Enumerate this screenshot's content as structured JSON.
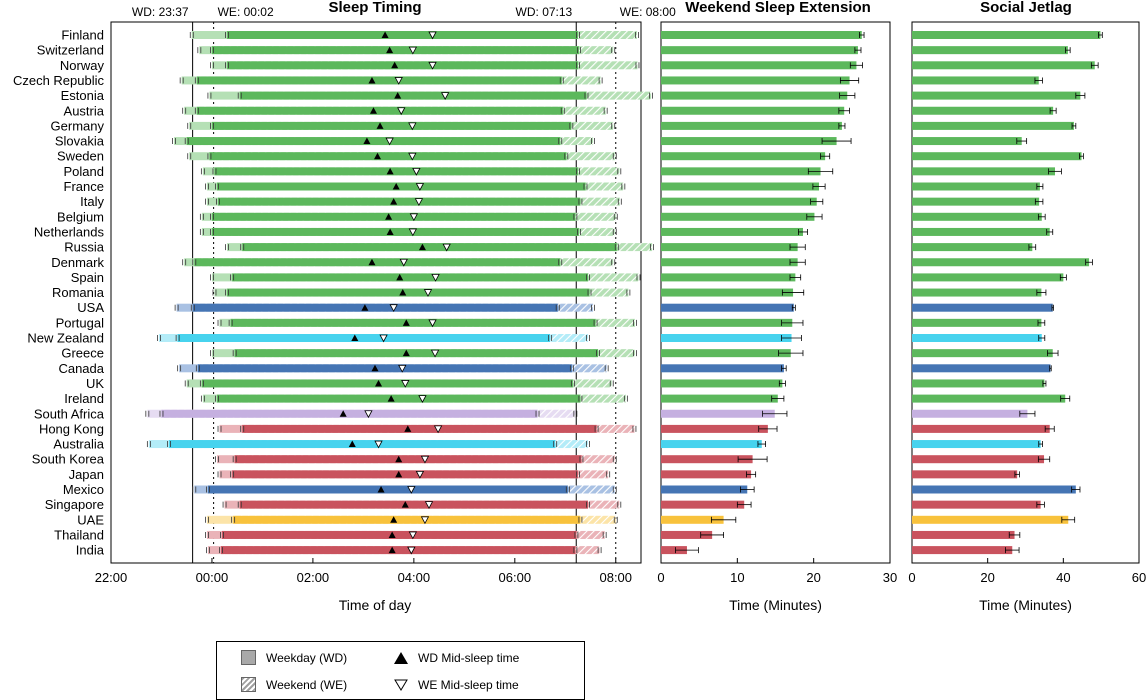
{
  "colors": {
    "europe": "#5cb85c",
    "europe_light": "#b5e0b5",
    "north_america": "#4575b4",
    "north_america_light": "#a9c1e3",
    "oceania": "#47d3ee",
    "oceania_light": "#b3ecf8",
    "africa": "#c5b0e0",
    "africa_light": "#e6dcf2",
    "asia": "#c9535e",
    "asia_light": "#eab3b8",
    "middle_east": "#f8c23c",
    "middle_east_light": "#fce4a8"
  },
  "chart_data": [
    {
      "type": "bar",
      "title": "Sleep Timing",
      "xlabel": "Time of day",
      "xticks": [
        "22:00",
        "00:00",
        "02:00",
        "04:00",
        "06:00",
        "08:00"
      ],
      "xrange_hours": [
        22,
        32.5
      ],
      "reference_lines": [
        {
          "label": "WD: 23:37",
          "hour": 23.617,
          "style": "solid"
        },
        {
          "label": "WE: 00:02",
          "hour": 24.033,
          "style": "dotted"
        },
        {
          "label": "WD: 07:13",
          "hour": 31.217,
          "style": "solid"
        },
        {
          "label": "WE: 08:00",
          "hour": 32.0,
          "style": "dotted"
        }
      ],
      "legend": [
        "Weekday (WD)",
        "Weekend (WE)",
        "WD Mid-sleep time",
        "WE Mid-sleep time"
      ],
      "legend_position": "bottom",
      "series_fields": [
        "country",
        "region",
        "wd_onset",
        "wd_offset",
        "we_onset",
        "we_offset",
        "wd_mid",
        "we_mid"
      ],
      "countries": [
        [
          "Finland",
          "europe",
          23.6,
          31.25,
          24.3,
          32.42,
          27.43,
          28.37
        ],
        [
          "Switzerland",
          "europe",
          23.75,
          31.27,
          24.0,
          31.95,
          27.52,
          27.98
        ],
        [
          "Norway",
          "europe",
          24.0,
          31.25,
          24.3,
          32.43,
          27.62,
          28.37
        ],
        [
          "Czech Republic",
          "europe",
          23.4,
          30.93,
          23.7,
          31.7,
          27.17,
          27.7
        ],
        [
          "Estonia",
          "europe",
          23.95,
          31.42,
          24.55,
          32.7,
          27.68,
          28.62
        ],
        [
          "Austria",
          "europe",
          23.45,
          30.95,
          23.7,
          31.8,
          27.2,
          27.75
        ],
        [
          "Germany",
          "europe",
          23.55,
          31.12,
          24.0,
          31.95,
          27.33,
          27.97
        ],
        [
          "Slovakia",
          "europe",
          23.25,
          30.9,
          23.5,
          31.55,
          27.07,
          27.52
        ],
        [
          "Sweden",
          "europe",
          23.55,
          31.02,
          23.95,
          31.98,
          27.28,
          27.97
        ],
        [
          "Poland",
          "europe",
          23.82,
          31.25,
          24.05,
          32.07,
          27.53,
          28.05
        ],
        [
          "France",
          "europe",
          23.9,
          31.4,
          24.1,
          32.15,
          27.65,
          28.12
        ],
        [
          "Italy",
          "europe",
          23.9,
          31.3,
          24.12,
          32.08,
          27.6,
          28.1
        ],
        [
          "Belgium",
          "europe",
          23.8,
          31.2,
          24.0,
          32.0,
          27.5,
          28.0
        ],
        [
          "Netherlands",
          "europe",
          23.8,
          31.27,
          24.0,
          31.98,
          27.53,
          27.98
        ],
        [
          "Russia",
          "europe",
          24.3,
          32.02,
          24.6,
          32.72,
          28.17,
          28.65
        ],
        [
          "Denmark",
          "europe",
          23.45,
          30.9,
          23.65,
          31.95,
          27.17,
          27.8
        ],
        [
          "Spain",
          "europe",
          24.0,
          31.45,
          24.4,
          32.45,
          27.72,
          28.43
        ],
        [
          "Romania",
          "europe",
          24.05,
          31.48,
          24.3,
          32.25,
          27.78,
          28.28
        ],
        [
          "USA",
          "north_america",
          23.3,
          30.85,
          23.62,
          31.55,
          27.03,
          27.6
        ],
        [
          "Portugal",
          "europe",
          24.15,
          31.6,
          24.37,
          32.38,
          27.85,
          28.37
        ],
        [
          "New Zealand",
          "oceania",
          22.95,
          30.7,
          23.32,
          31.45,
          26.83,
          27.4
        ],
        [
          "Greece",
          "europe",
          24.0,
          31.65,
          24.45,
          32.38,
          27.85,
          28.42
        ],
        [
          "Canada",
          "north_america",
          23.35,
          31.13,
          23.72,
          31.82,
          27.23,
          27.77
        ],
        [
          "UK",
          "europe",
          23.5,
          31.15,
          23.8,
          31.92,
          27.3,
          27.83
        ],
        [
          "Ireland",
          "europe",
          23.82,
          31.3,
          24.1,
          32.2,
          27.55,
          28.17
        ],
        [
          "South Africa",
          "africa",
          22.72,
          30.45,
          23.0,
          31.2,
          26.6,
          27.1
        ],
        [
          "Hong Kong",
          "asia",
          24.15,
          31.62,
          24.6,
          32.37,
          27.88,
          28.48
        ],
        [
          "Australia",
          "oceania",
          22.75,
          30.8,
          23.15,
          31.45,
          26.78,
          27.3
        ],
        [
          "South Korea",
          "asia",
          24.1,
          31.32,
          24.45,
          31.98,
          27.7,
          28.22
        ],
        [
          "Japan",
          "asia",
          24.15,
          31.25,
          24.4,
          31.85,
          27.7,
          28.12
        ],
        [
          "Mexico",
          "north_america",
          23.65,
          31.05,
          23.92,
          31.98,
          27.35,
          27.95
        ],
        [
          "Singapore",
          "asia",
          24.25,
          31.45,
          24.55,
          32.07,
          27.83,
          28.3
        ],
        [
          "UAE",
          "middle_east",
          23.9,
          31.3,
          24.42,
          32.0,
          27.6,
          28.22
        ],
        [
          "Thailand",
          "asia",
          23.9,
          31.22,
          24.2,
          31.78,
          27.57,
          27.98
        ],
        [
          "India",
          "asia",
          23.92,
          31.2,
          24.18,
          31.68,
          27.57,
          27.95
        ]
      ]
    },
    {
      "type": "bar",
      "title": "Weekend Sleep Extension",
      "xlabel": "Time (Minutes)",
      "xlim": [
        0,
        30
      ],
      "xticks": [
        "0",
        "10",
        "20",
        "30"
      ],
      "series_fields": [
        "value",
        "error"
      ],
      "values": [
        [
          26.3,
          0.3
        ],
        [
          25.8,
          0.4
        ],
        [
          25.6,
          0.8
        ],
        [
          24.7,
          1.2
        ],
        [
          24.4,
          1.0
        ],
        [
          24.0,
          0.7
        ],
        [
          23.7,
          0.4
        ],
        [
          23.0,
          1.9
        ],
        [
          21.5,
          0.6
        ],
        [
          20.9,
          1.6
        ],
        [
          20.7,
          0.8
        ],
        [
          20.4,
          0.8
        ],
        [
          20.1,
          1.0
        ],
        [
          18.6,
          0.6
        ],
        [
          17.9,
          1.0
        ],
        [
          17.9,
          1.0
        ],
        [
          17.6,
          0.7
        ],
        [
          17.3,
          1.4
        ],
        [
          17.4,
          0.2
        ],
        [
          17.2,
          1.4
        ],
        [
          17.1,
          1.3
        ],
        [
          17.0,
          1.6
        ],
        [
          16.1,
          0.3
        ],
        [
          15.9,
          0.4
        ],
        [
          15.3,
          0.8
        ],
        [
          14.9,
          1.6
        ],
        [
          14.0,
          1.2
        ],
        [
          13.2,
          0.5
        ],
        [
          12.0,
          1.9
        ],
        [
          11.8,
          0.6
        ],
        [
          11.3,
          0.9
        ],
        [
          10.9,
          0.9
        ],
        [
          8.2,
          1.6
        ],
        [
          6.7,
          1.5
        ],
        [
          3.4,
          1.5
        ]
      ]
    },
    {
      "type": "bar",
      "title": "Social Jetlag",
      "xlabel": "Time (Minutes)",
      "xlim": [
        0,
        60
      ],
      "xticks": [
        "0",
        "20",
        "40",
        "60"
      ],
      "series_fields": [
        "value",
        "error"
      ],
      "values": [
        [
          49.8,
          0.5
        ],
        [
          41.2,
          0.6
        ],
        [
          48.3,
          0.9
        ],
        [
          33.5,
          1.0
        ],
        [
          44.5,
          1.2
        ],
        [
          37.3,
          0.8
        ],
        [
          42.8,
          0.5
        ],
        [
          29.0,
          1.3
        ],
        [
          44.8,
          0.5
        ],
        [
          37.8,
          1.7
        ],
        [
          33.8,
          0.8
        ],
        [
          33.6,
          1.0
        ],
        [
          34.3,
          0.9
        ],
        [
          36.4,
          0.8
        ],
        [
          31.8,
          0.9
        ],
        [
          46.8,
          0.9
        ],
        [
          40.0,
          0.8
        ],
        [
          34.2,
          1.2
        ],
        [
          37.2,
          0.2
        ],
        [
          34.2,
          0.9
        ],
        [
          34.3,
          0.8
        ],
        [
          37.2,
          1.4
        ],
        [
          36.6,
          0.2
        ],
        [
          35.0,
          0.4
        ],
        [
          40.5,
          1.2
        ],
        [
          30.5,
          2.0
        ],
        [
          36.4,
          1.2
        ],
        [
          34.0,
          0.5
        ],
        [
          34.9,
          1.5
        ],
        [
          27.8,
          0.6
        ],
        [
          43.3,
          1.1
        ],
        [
          34.0,
          1.0
        ],
        [
          41.3,
          1.7
        ],
        [
          27.1,
          1.4
        ],
        [
          26.5,
          1.8
        ]
      ]
    }
  ],
  "legend": {
    "weekday": "Weekday (WD)",
    "weekend": "Weekend (WE)",
    "wd_mid": "WD Mid-sleep time",
    "we_mid": "WE Mid-sleep time"
  }
}
